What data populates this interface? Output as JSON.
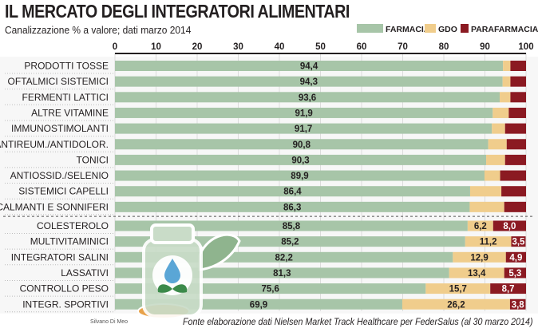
{
  "title": "IL MERCATO DEGLI INTEGRATORI ALIMENTARI",
  "subtitle": "Canalizzazione % a valore; dati marzo 2014",
  "legend": [
    {
      "label": "FARMACIA",
      "color": "#a7c5a8"
    },
    {
      "label": "GDO",
      "color": "#f0cd8c"
    },
    {
      "label": "PARAFARMACIA",
      "color": "#8b1a22"
    }
  ],
  "credit": "Silvano Di Meo",
  "source": "Fonte elaborazione dati Nielsen Market Track Healthcare per FederSalus (al 30 marzo 2014)",
  "chart_data": {
    "type": "bar",
    "orientation": "horizontal",
    "stacked": true,
    "title": "IL MERCATO DEGLI INTEGRATORI ALIMENTARI",
    "subtitle": "Canalizzazione % a valore; dati marzo 2014",
    "xlim": [
      0,
      100
    ],
    "xticks": [
      "0",
      "10",
      "20",
      "30",
      "40",
      "50",
      "60",
      "70",
      "80",
      "90",
      "100"
    ],
    "grid": true,
    "legend_position": "top-right",
    "categories": [
      "PRODOTTI TOSSE",
      "OFTALMICI SISTEMICI",
      "FERMENTI LATTICI",
      "ALTRE VITAMINE",
      "IMMUNOSTIMOLANTI",
      "ANTIREUM./ANTIDOLOR.",
      "TONICI",
      "ANTIOSSID./SELENIO",
      "SISTEMICI CAPELLI",
      "CALMANTI E SONNIFERI",
      "COLESTEROLO",
      "MULTIVITAMINICI",
      "INTEGRATORI SALINI",
      "LASSATIVI",
      "CONTROLLO PESO",
      "INTEGR. SPORTIVI"
    ],
    "series": [
      {
        "name": "FARMACIA",
        "color": "#a7c5a8",
        "values": [
          94.4,
          94.3,
          93.6,
          91.9,
          91.7,
          90.8,
          90.3,
          89.9,
          86.4,
          86.3,
          85.8,
          85.2,
          82.2,
          81.3,
          75.6,
          69.9
        ],
        "labels": [
          "94,4",
          "94,3",
          "93,6",
          "91,9",
          "91,7",
          "90,8",
          "90,3",
          "89,9",
          "86,4",
          "86,3",
          "85,8",
          "85,2",
          "82,2",
          "81,3",
          "75,6",
          "69,9"
        ]
      },
      {
        "name": "GDO",
        "color": "#f0cd8c",
        "values": [
          1.8,
          1.9,
          2.6,
          3.9,
          3.2,
          4.5,
          4.6,
          3.8,
          7.6,
          8.4,
          6.2,
          11.2,
          12.9,
          13.4,
          15.7,
          26.2
        ],
        "labels": [
          "",
          "",
          "",
          "",
          "",
          "",
          "",
          "",
          "",
          "",
          "6,2",
          "11,2",
          "12,9",
          "13,4",
          "15,7",
          "26,2"
        ]
      },
      {
        "name": "PARAFARMACIA",
        "color": "#8b1a22",
        "values": [
          3.8,
          3.8,
          3.8,
          4.2,
          5.1,
          4.7,
          5.1,
          6.3,
          6.0,
          5.3,
          8.0,
          3.5,
          4.9,
          5.3,
          8.7,
          3.8
        ],
        "labels": [
          "",
          "",
          "",
          "",
          "",
          "",
          "",
          "",
          "",
          "",
          "8,0",
          "3,5",
          "4,9",
          "5,3",
          "8,7",
          "3,8"
        ]
      }
    ]
  }
}
